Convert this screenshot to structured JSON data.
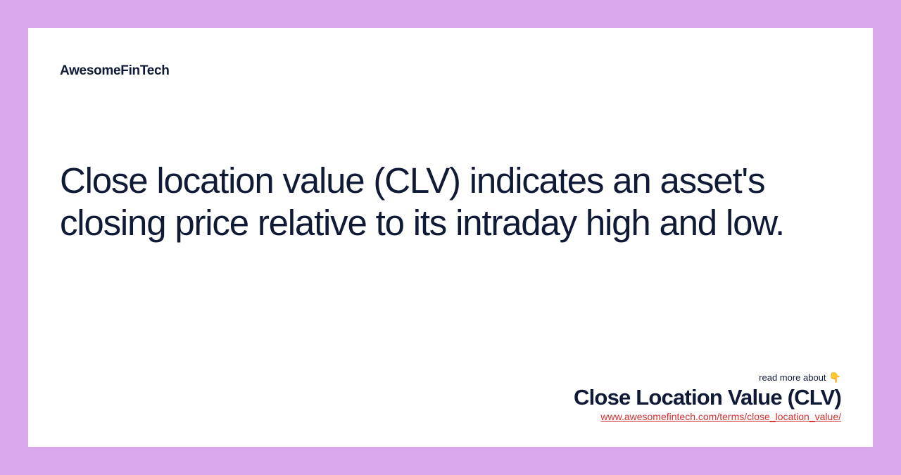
{
  "brand": "AwesomeFinTech",
  "description": "Close location value (CLV) indicates an asset's closing price relative to its intraday high and low.",
  "footer": {
    "read_more_text": "read more about",
    "read_more_icon": "👇",
    "term_title": "Close Location Value (CLV)",
    "term_url": "www.awesomefintech.com/terms/close_location_value/"
  },
  "colors": {
    "background": "#d9a8ec",
    "card_background": "#ffffff",
    "text_primary": "#101935",
    "link": "#d32f2f"
  }
}
